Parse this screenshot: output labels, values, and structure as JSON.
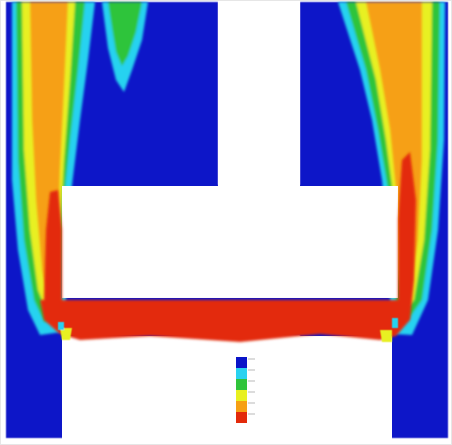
{
  "image": {
    "caption": ""
  },
  "palette": {
    "background": "#ffffff",
    "deep_blue": "#0a14c8",
    "cyan": "#28d2f0",
    "green": "#2fc43a",
    "yellow": "#e8f020",
    "orange": "#f6a014",
    "red": "#e32a0a",
    "frame": "#b9b9b9"
  },
  "legend": {
    "levels": 6,
    "colors": [
      "#0a14c8",
      "#28d2f0",
      "#2fc43a",
      "#e8f020",
      "#f6a014",
      "#e32a0a"
    ],
    "tick_labels": []
  }
}
